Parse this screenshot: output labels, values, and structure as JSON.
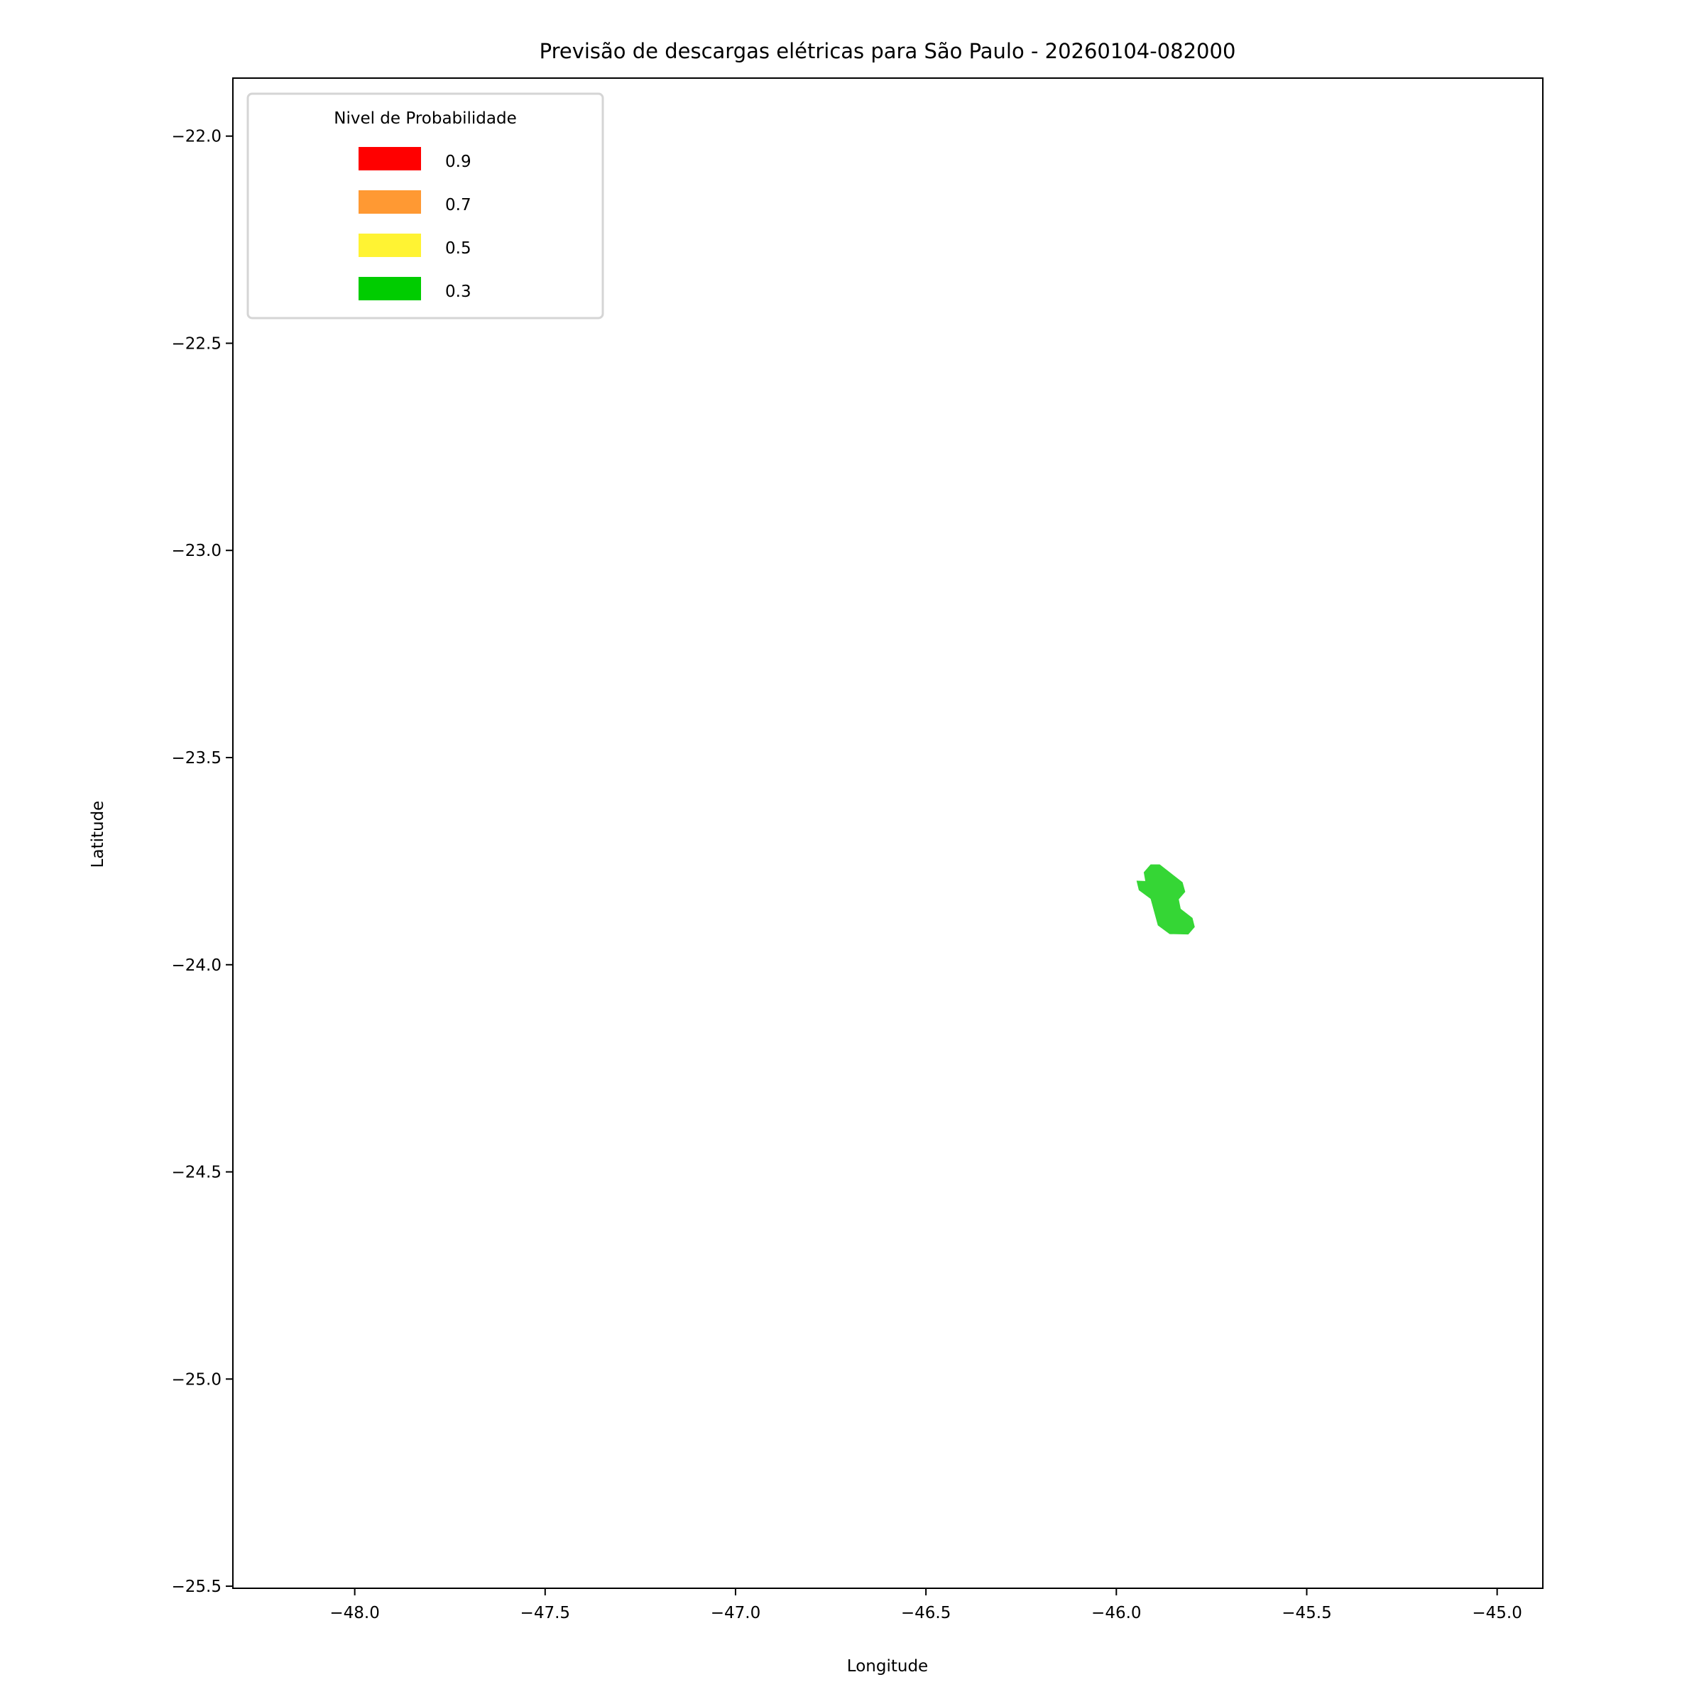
{
  "chart_data": {
    "type": "map",
    "title": "Previsão de descargas elétricas para São Paulo - 20260104-082000",
    "xlabel": "Longitude",
    "ylabel": "Latitude",
    "xlim": [
      -48.32,
      -44.88
    ],
    "ylim": [
      -25.505,
      -21.86
    ],
    "xticks": [
      -48.0,
      -47.5,
      -47.0,
      -46.5,
      -46.0,
      -45.5,
      -45.0
    ],
    "xtick_labels": [
      "−48.0",
      "−47.5",
      "−47.0",
      "−46.5",
      "−46.0",
      "−45.5",
      "−45.0"
    ],
    "yticks": [
      -22.0,
      -22.5,
      -23.0,
      -23.5,
      -24.0,
      -24.5,
      -25.0,
      -25.5
    ],
    "ytick_labels": [
      "−22.0",
      "−22.5",
      "−23.0",
      "−23.5",
      "−24.0",
      "−24.5",
      "−25.0",
      "−25.5"
    ],
    "grid": false,
    "legend": {
      "title": "Nivel de Probabilidade",
      "placement": "top-left",
      "entries": [
        {
          "label": "0.9",
          "color": "#ff0000"
        },
        {
          "label": "0.7",
          "color": "#ff9933"
        },
        {
          "label": "0.5",
          "color": "#fff333"
        },
        {
          "label": "0.3",
          "color": "#00cc00"
        }
      ]
    },
    "polygons": [
      {
        "level": "0.3",
        "color": "#35d635",
        "coords": [
          [
            -45.91,
            -23.758
          ],
          [
            -45.886,
            -23.758
          ],
          [
            -45.826,
            -23.801
          ],
          [
            -45.819,
            -23.824
          ],
          [
            -45.836,
            -23.842
          ],
          [
            -45.831,
            -23.865
          ],
          [
            -45.8,
            -23.887
          ],
          [
            -45.794,
            -23.909
          ],
          [
            -45.811,
            -23.927
          ],
          [
            -45.86,
            -23.926
          ],
          [
            -45.891,
            -23.905
          ],
          [
            -45.91,
            -23.841
          ],
          [
            -45.941,
            -23.82
          ],
          [
            -45.947,
            -23.797
          ],
          [
            -45.924,
            -23.798
          ],
          [
            -45.928,
            -23.777
          ]
        ]
      }
    ]
  }
}
